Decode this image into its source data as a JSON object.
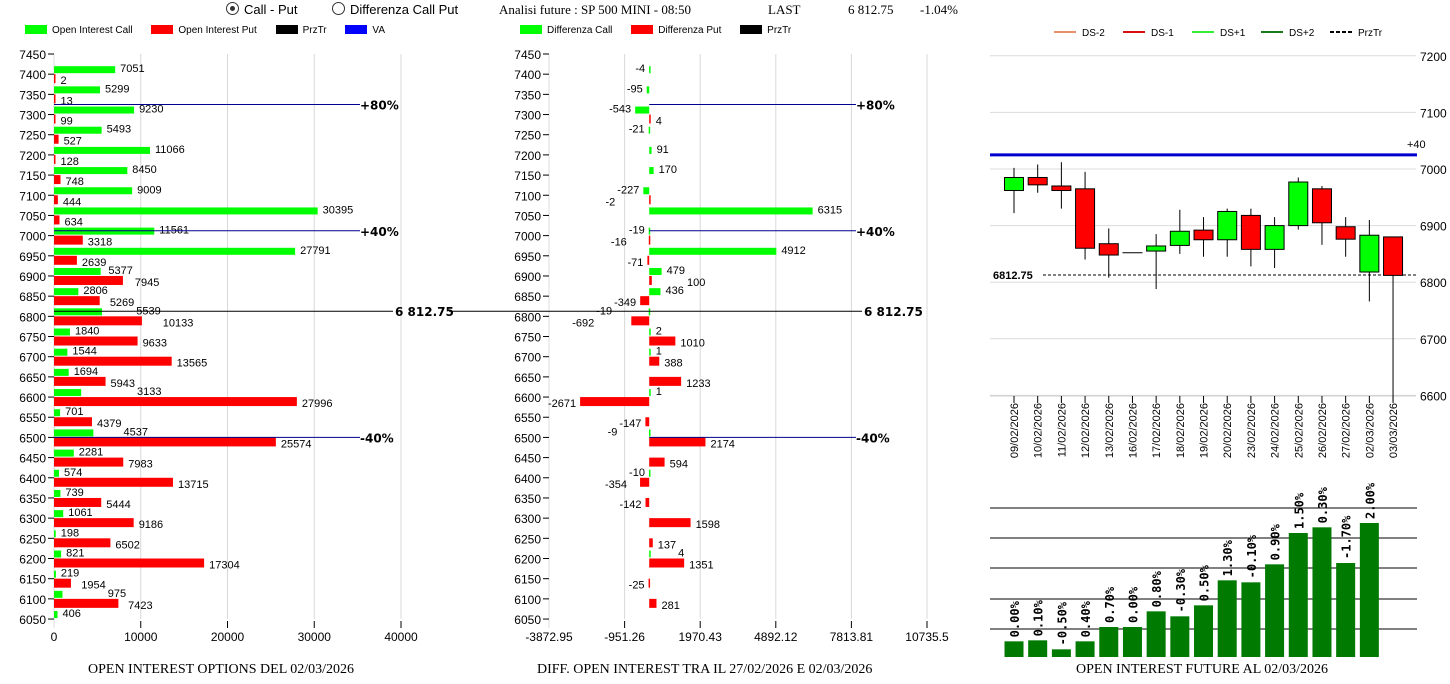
{
  "header": {
    "radio_call_put": "Call - Put",
    "radio_diff": "Differenza Call Put",
    "analysis": "Analisi future : SP 500 MINI - 08:50",
    "last_label": "LAST",
    "last_value": "6 812.75",
    "change": "-1.04%"
  },
  "colors": {
    "call": "#00ff00",
    "put": "#ff0000",
    "prztr": "#000000",
    "va": "#0000ff",
    "green_candle": "#00ff00",
    "red_candle": "#ff0000",
    "oi_bar": "#007a00",
    "ds_minus2": "#e8906a",
    "ds_minus1": "#d81010",
    "ds_plus1": "#33ee33",
    "ds_plus2": "#1a7a1a"
  },
  "chart_data": [
    {
      "type": "bar",
      "orientation": "horizontal",
      "title": "OPEN INTEREST OPTIONS DEL 02/03/2026",
      "legend": [
        "Open Interest Call",
        "Open Interest Put",
        "PrzTr",
        "VA"
      ],
      "strikes": [
        7450,
        7400,
        7350,
        7300,
        7250,
        7200,
        7150,
        7100,
        7050,
        7000,
        6950,
        6900,
        6850,
        6800,
        6750,
        6700,
        6650,
        6600,
        6550,
        6500,
        6450,
        6400,
        6350,
        6300,
        6250,
        6200,
        6150,
        6100,
        6050
      ],
      "series": [
        {
          "name": "Open Interest Call",
          "values": [
            null,
            7051,
            5299,
            9230,
            5493,
            11066,
            8450,
            9009,
            30395,
            11561,
            27791,
            5377,
            2806,
            5539,
            1840,
            1544,
            1694,
            3133,
            701,
            4537,
            2281,
            574,
            739,
            1061,
            198,
            821,
            219,
            975,
            406
          ]
        },
        {
          "name": "Open Interest Put",
          "values": [
            null,
            2,
            13,
            99,
            527,
            128,
            748,
            444,
            634,
            3318,
            2639,
            7945,
            5269,
            10133,
            9633,
            13565,
            5943,
            27996,
            4379,
            25574,
            7983,
            13715,
            5444,
            9186,
            6502,
            17304,
            1954,
            7423,
            null
          ]
        }
      ],
      "xticks": [
        "0",
        "10000",
        "20000",
        "30000",
        "40000"
      ],
      "xlim": [
        0,
        40000
      ],
      "ylim": [
        6050,
        7450
      ],
      "annotations": [
        {
          "label": "+80%",
          "y": 7325
        },
        {
          "label": "+40%",
          "y": 7012
        },
        {
          "label": "-40%",
          "y": 6500
        },
        {
          "label": "6 812.75",
          "y": 6812.75,
          "kind": "prztr"
        }
      ]
    },
    {
      "type": "bar",
      "orientation": "horizontal",
      "title": "DIFF. OPEN INTEREST TRA IL 27/02/2026 E 02/03/2026",
      "legend": [
        "Differenza Call",
        "Differenza Put",
        "PrzTr"
      ],
      "strikes": [
        7450,
        7400,
        7350,
        7300,
        7250,
        7200,
        7150,
        7100,
        7050,
        7000,
        6950,
        6900,
        6850,
        6800,
        6750,
        6700,
        6650,
        6600,
        6550,
        6500,
        6450,
        6400,
        6350,
        6300,
        6250,
        6200,
        6150,
        6100,
        6050
      ],
      "series": [
        {
          "name": "Differenza Call",
          "values": [
            null,
            -4,
            -95,
            -543,
            -21,
            91,
            170,
            -227,
            6315,
            -19,
            4912,
            479,
            436,
            -19,
            2,
            1,
            null,
            1,
            null,
            -9,
            null,
            -10,
            null,
            null,
            null,
            4,
            null,
            null,
            null
          ]
        },
        {
          "name": "Differenza Put",
          "values": [
            null,
            null,
            null,
            4,
            null,
            null,
            null,
            -2,
            null,
            -16,
            -71,
            100,
            -349,
            -692,
            1010,
            388,
            1233,
            -2671,
            -147,
            2174,
            594,
            -354,
            -142,
            1598,
            137,
            1351,
            -25,
            281,
            null
          ]
        }
      ],
      "xticks": [
        "-3872.95",
        "-951.26",
        "1970.43",
        "4892.12",
        "7813.81",
        "10735.5"
      ],
      "xlim": [
        -3872.95,
        10735.5
      ],
      "ylim": [
        6050,
        7450
      ],
      "annotations": [
        {
          "label": "+80%",
          "y": 7325
        },
        {
          "label": "+40%",
          "y": 7012
        },
        {
          "label": "-40%",
          "y": 6500
        },
        {
          "label": "6 812.75",
          "y": 6812.75,
          "kind": "prztr"
        }
      ]
    },
    {
      "type": "candlestick",
      "legend": [
        "DS-2",
        "DS-1",
        "DS+1",
        "DS+2",
        "PrzTr"
      ],
      "dates": [
        "09/02/2026",
        "10/02/2026",
        "11/02/2026",
        "12/02/2026",
        "13/02/2026",
        "16/02/2026",
        "17/02/2026",
        "18/02/2026",
        "19/02/2026",
        "20/02/2026",
        "23/02/2026",
        "24/02/2026",
        "25/02/2026",
        "26/02/2026",
        "27/02/2026",
        "02/03/2026",
        "03/03/2026"
      ],
      "ohlc": [
        [
          6962,
          7002,
          6922,
          6985
        ],
        [
          6985,
          7008,
          6958,
          6972
        ],
        [
          6970,
          7012,
          6930,
          6962
        ],
        [
          6965,
          6995,
          6840,
          6860
        ],
        [
          6868,
          6895,
          6808,
          6848
        ],
        [
          6852,
          6852,
          6852,
          6852
        ],
        [
          6855,
          6885,
          6788,
          6864
        ],
        [
          6865,
          6928,
          6850,
          6890
        ],
        [
          6892,
          6915,
          6845,
          6875
        ],
        [
          6875,
          6930,
          6845,
          6925
        ],
        [
          6918,
          6930,
          6828,
          6858
        ],
        [
          6858,
          6915,
          6825,
          6900
        ],
        [
          6900,
          6985,
          6893,
          6977
        ],
        [
          6965,
          6970,
          6866,
          6905
        ],
        [
          6898,
          6915,
          6845,
          6876
        ],
        [
          6818,
          6910,
          6766,
          6883
        ],
        [
          6880,
          6880,
          6590,
          6812
        ]
      ],
      "yticks": [
        "7200",
        "7100",
        "7000",
        "6900",
        "6800",
        "6700",
        "6600"
      ],
      "ylim": [
        6600,
        7200
      ],
      "va_line": {
        "label": "+40",
        "y": 7025
      },
      "prztr": {
        "label": "6812.75",
        "y": 6812.75
      }
    },
    {
      "type": "bar",
      "title": "OPEN INTEREST FUTURE AL 02/03/2026",
      "labels": [
        "0.00%",
        "0.10%",
        "-0.50%",
        "0.40%",
        "0.70%",
        "0.00%",
        "0.80%",
        "-0.30%",
        "0.50%",
        "1.30%",
        "-0.10%",
        "0.90%",
        "1.50%",
        "0.30%",
        "-1.70%",
        "2.00%"
      ],
      "relative_values": [
        47,
        50,
        23,
        47,
        90,
        90,
        137,
        122,
        155,
        230,
        224,
        278,
        372,
        389,
        282,
        402
      ]
    }
  ]
}
